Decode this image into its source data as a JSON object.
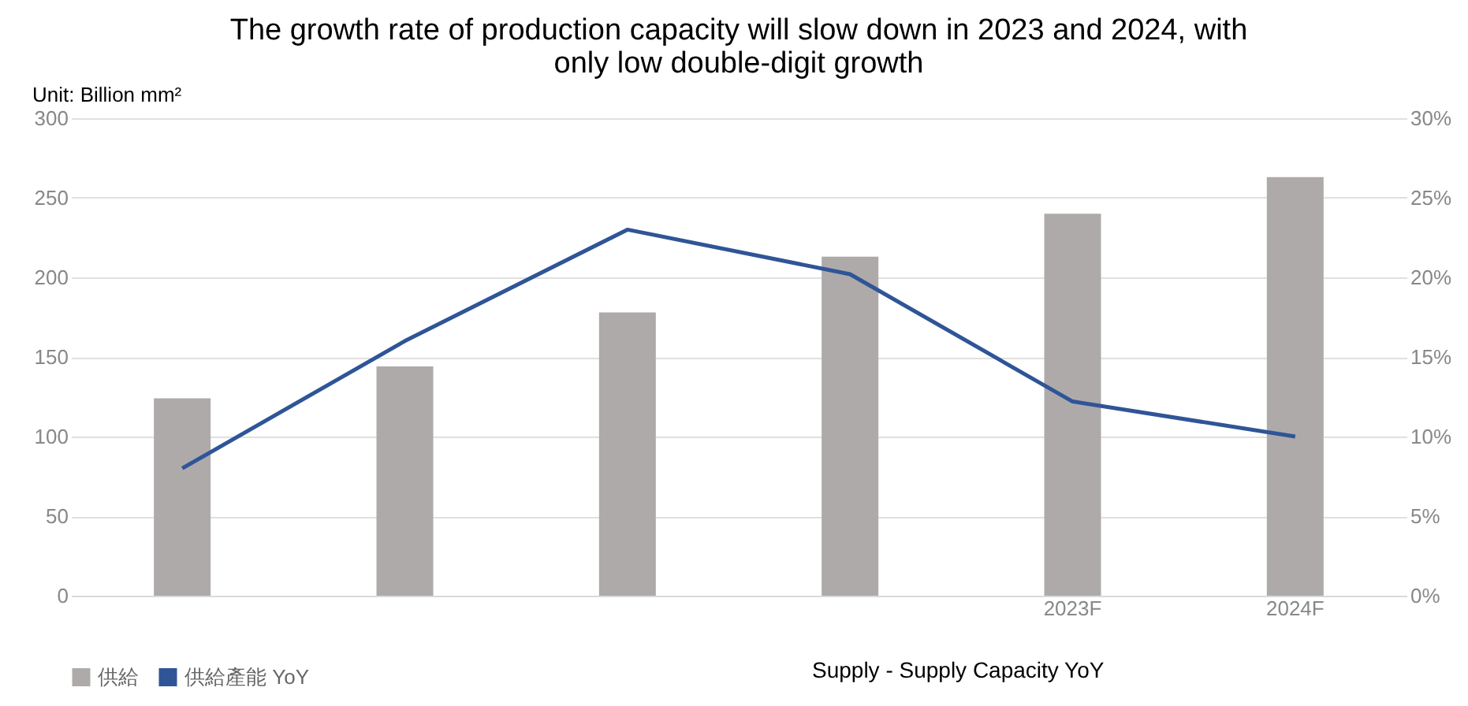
{
  "chart_data": {
    "type": "bar",
    "title": "The growth rate of production capacity will slow down in 2023 and 2024, with only low double-digit growth",
    "ylabel": "Unit: Billion mm²",
    "categories": [
      null,
      null,
      null,
      null,
      "2023F",
      "2024F"
    ],
    "series": [
      {
        "name": "供給",
        "color": "#aeaaaa",
        "values": [
          124,
          144,
          178,
          213,
          240,
          263
        ]
      },
      {
        "name": "供給產能 YoY",
        "type": "line",
        "axis": "y2",
        "color": "#2f5597",
        "values": [
          8,
          16,
          23,
          20.2,
          12.2,
          10
        ]
      }
    ],
    "ylim": [
      0,
      300
    ],
    "yticks": [
      0,
      50,
      100,
      150,
      200,
      250,
      300
    ],
    "y2lim": [
      0,
      30
    ],
    "y2ticks": [
      {
        "value": 0,
        "label": "0%"
      },
      {
        "value": 5,
        "label": "5%"
      },
      {
        "value": 10,
        "label": "10%"
      },
      {
        "value": 15,
        "label": "15%"
      },
      {
        "value": 20,
        "label": "20%"
      },
      {
        "value": 25,
        "label": "25%"
      },
      {
        "value": 30,
        "label": "30%"
      }
    ],
    "grid": "y",
    "legend": "bottom",
    "marker": "none",
    "line_style": "solid",
    "annotations": [
      "Supply - Supply Capacity YoY"
    ]
  }
}
